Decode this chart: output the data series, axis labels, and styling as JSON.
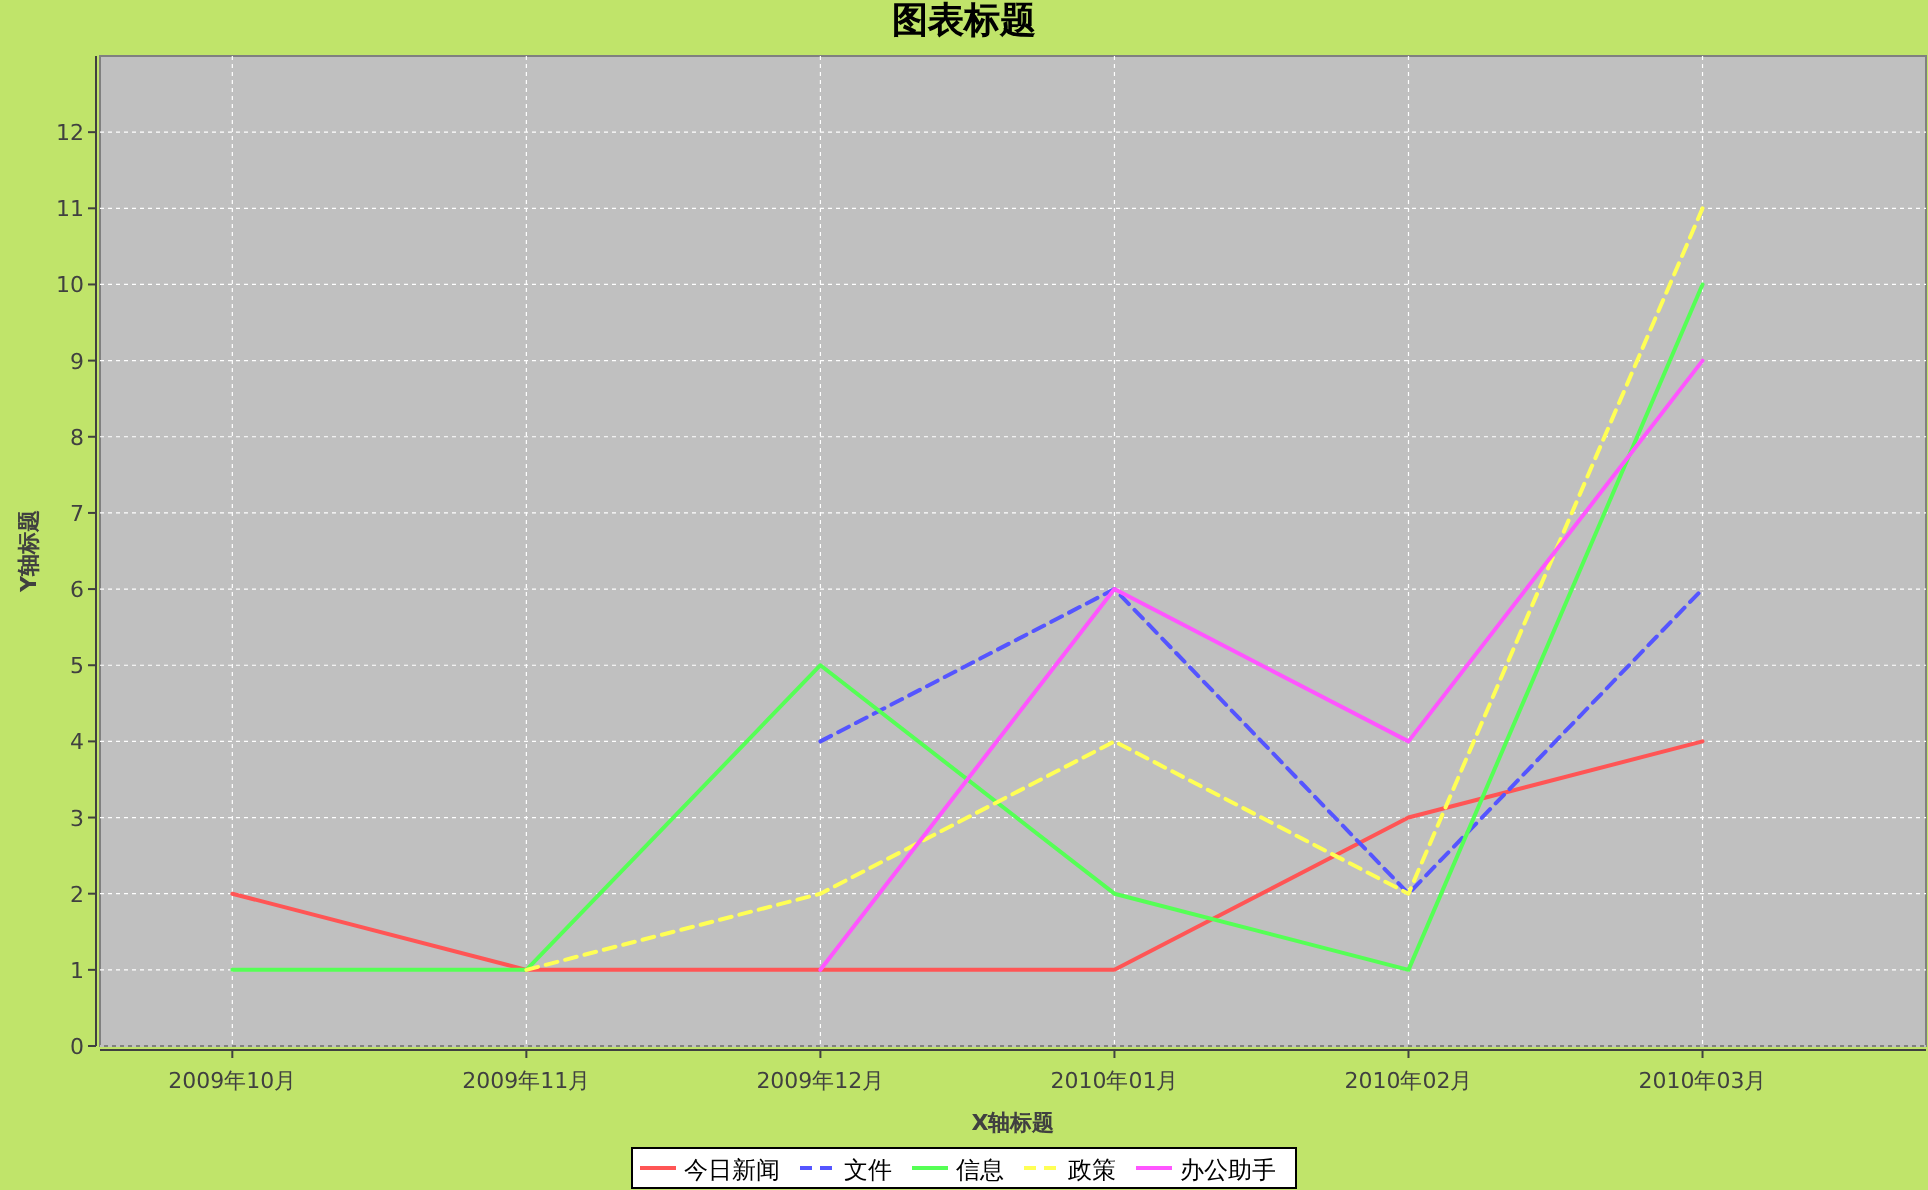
{
  "chart_data": {
    "type": "line",
    "title": "图表标题",
    "xlabel": "X轴标题",
    "ylabel": "Y轴标题",
    "categories": [
      "2009年10月",
      "2009年11月",
      "2009年12月",
      "2010年01月",
      "2010年02月",
      "2010年03月"
    ],
    "series": [
      {
        "name": "今日新闻",
        "color": "#ff5555",
        "line_style": "solid",
        "values": [
          2,
          1,
          1,
          1,
          3,
          4
        ]
      },
      {
        "name": "文件",
        "color": "#5555ff",
        "line_style": "dashed",
        "values": [
          null,
          null,
          4,
          6,
          2,
          6
        ]
      },
      {
        "name": "信息",
        "color": "#55ff55",
        "line_style": "solid",
        "values": [
          1,
          1,
          5,
          2,
          1,
          10
        ]
      },
      {
        "name": "政策",
        "color": "#ffff55",
        "line_style": "dashed",
        "values": [
          null,
          1,
          2,
          4,
          2,
          11
        ]
      },
      {
        "name": "办公助手",
        "color": "#ff55ff",
        "line_style": "solid",
        "values": [
          null,
          null,
          1,
          6,
          4,
          9
        ]
      }
    ],
    "ylim": [
      0,
      13
    ],
    "yticks": [
      0,
      1,
      2,
      3,
      4,
      5,
      6,
      7,
      8,
      9,
      10,
      11,
      12
    ],
    "grid": true,
    "legend": "bottom"
  }
}
